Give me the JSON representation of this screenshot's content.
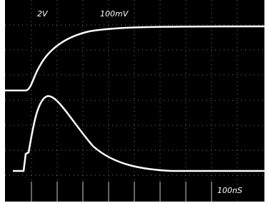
{
  "screen": {
    "channel_1_scale": "2V",
    "channel_2_scale": "100mV",
    "time_scale": "100nS"
  }
}
